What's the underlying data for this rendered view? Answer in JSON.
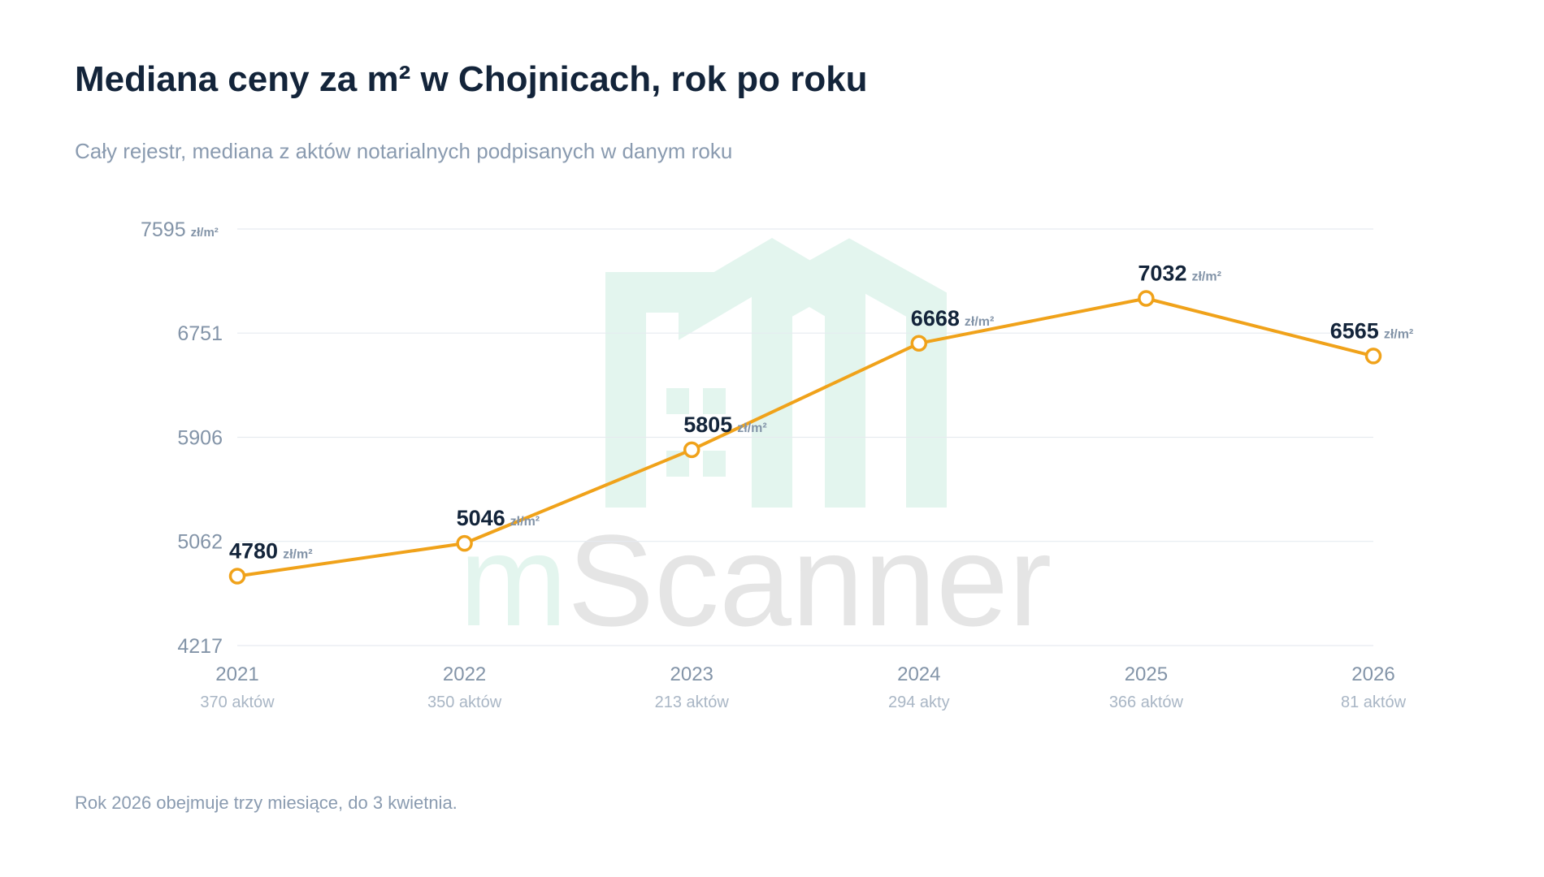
{
  "title": "Mediana ceny za m² w Chojnicach, rok po roku",
  "subtitle": "Cały rejestr, mediana z aktów notarialnych podpisanych w danym roku",
  "footnote": "Rok 2026 obejmuje trzy miesiące, do 3 kwietnia.",
  "watermark": {
    "part1": "m",
    "part2": "Scanner"
  },
  "colors": {
    "line": "#f0a21a",
    "point_fill": "#ffffff",
    "watermark_green": "#e3f5ee",
    "watermark_gray": "#e5e5e5"
  },
  "chart_data": {
    "type": "line",
    "x": [
      "2021",
      "2022",
      "2023",
      "2024",
      "2025",
      "2026"
    ],
    "x_sublabels": [
      "370 aktów",
      "350 aktów",
      "213 aktów",
      "294 akty",
      "366 aktów",
      "81 aktów"
    ],
    "values": [
      4780,
      5046,
      5805,
      6668,
      7032,
      6565
    ],
    "value_unit": "zł/m²",
    "y_ticks": [
      4217,
      5062,
      5906,
      6751,
      7595
    ],
    "y_tick_unit": "zł/m²",
    "ylim": [
      4217,
      7595
    ],
    "grid": true
  }
}
